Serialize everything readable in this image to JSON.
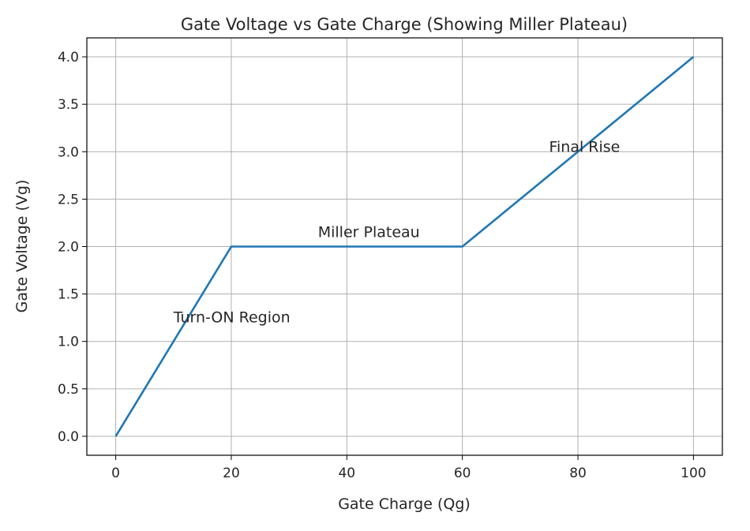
{
  "chart_data": {
    "type": "line",
    "title": "Gate Voltage vs Gate Charge (Showing Miller Plateau)",
    "xlabel": "Gate Charge (Qg)",
    "ylabel": "Gate Voltage (Vg)",
    "xlim": [
      -5,
      105
    ],
    "ylim": [
      -0.2,
      4.2
    ],
    "xticks": [
      0,
      20,
      40,
      60,
      80,
      100
    ],
    "xtick_labels": [
      "0",
      "20",
      "40",
      "60",
      "80",
      "100"
    ],
    "yticks": [
      0,
      0.5,
      1,
      1.5,
      2,
      2.5,
      3,
      3.5,
      4
    ],
    "ytick_labels": [
      "0.0",
      "0.5",
      "1.0",
      "1.5",
      "2.0",
      "2.5",
      "3.0",
      "3.5",
      "4.0"
    ],
    "grid": true,
    "series": [
      {
        "x": [
          0,
          20,
          60,
          100
        ],
        "y": [
          0,
          2,
          2,
          4
        ],
        "color": "#1f77b4"
      }
    ],
    "annotations": [
      {
        "text": "Turn-ON Region",
        "x": 10,
        "y": 1.2
      },
      {
        "text": "Miller Plateau",
        "x": 35,
        "y": 2.1
      },
      {
        "text": "Final Rise",
        "x": 75,
        "y": 3.0
      }
    ]
  }
}
